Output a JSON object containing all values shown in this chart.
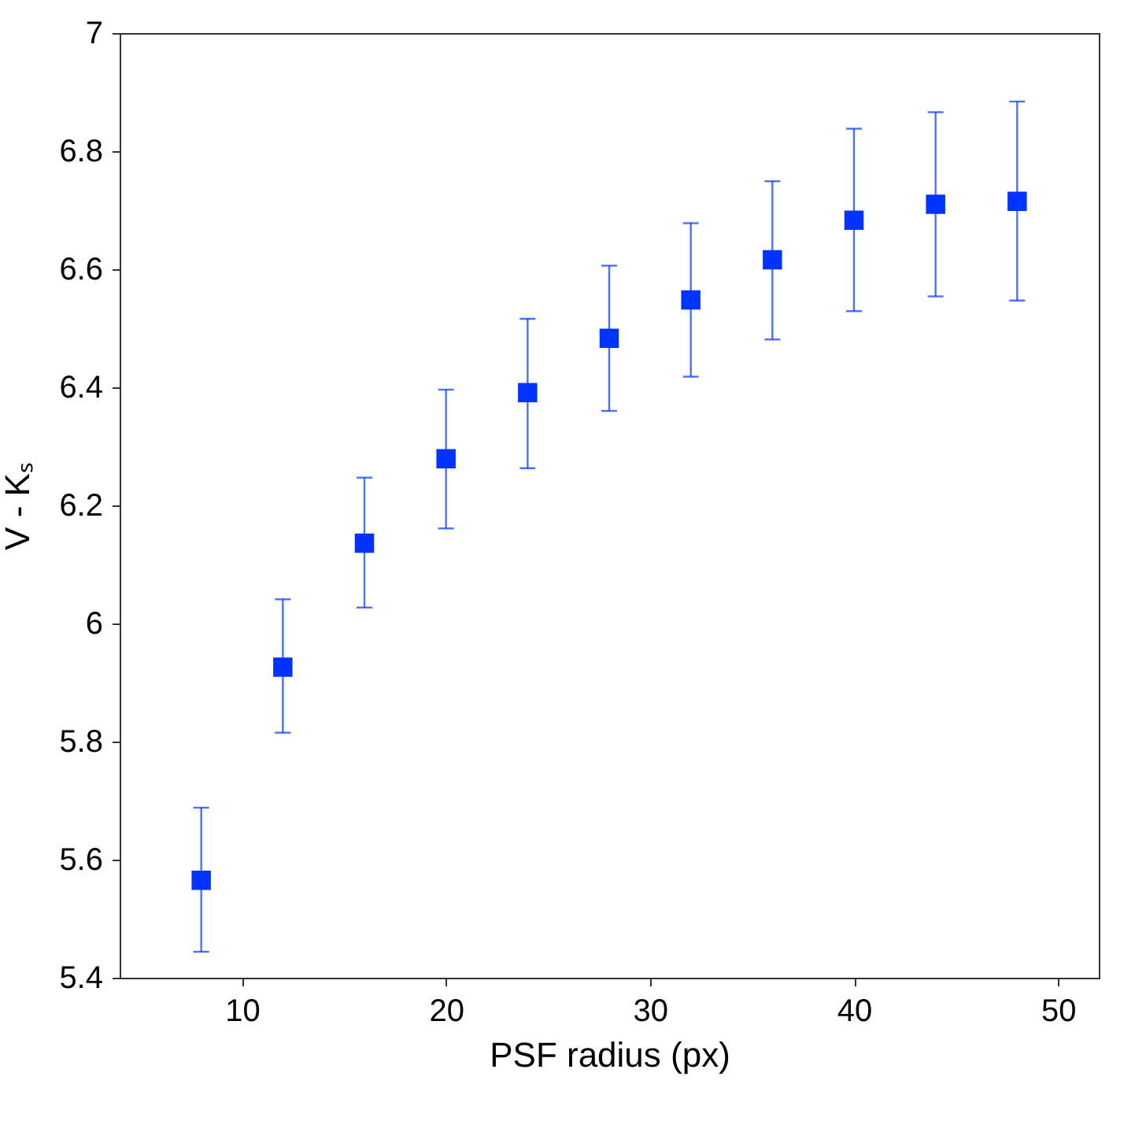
{
  "chart_data": {
    "type": "scatter",
    "xlabel": "PSF radius (px)",
    "ylabel": "V - Kₛ",
    "x": [
      8,
      12,
      16,
      20,
      24,
      28,
      32,
      36,
      40,
      44,
      48
    ],
    "series": [
      {
        "color": "#0033ff",
        "marker": "square",
        "values": [
          5.565,
          5.926,
          6.136,
          6.279,
          6.391,
          6.483,
          6.548,
          6.616,
          6.683,
          6.71,
          6.715
        ],
        "errors": [
          [
            5.444,
            5.688
          ],
          [
            5.815,
            6.041
          ],
          [
            6.027,
            6.247
          ],
          [
            6.161,
            6.396
          ],
          [
            6.263,
            6.516
          ],
          [
            6.36,
            6.606
          ],
          [
            6.418,
            6.678
          ],
          [
            6.481,
            6.749
          ],
          [
            6.529,
            6.838
          ],
          [
            6.554,
            6.866
          ],
          [
            6.547,
            6.884
          ]
        ]
      }
    ],
    "xlim": [
      4,
      52
    ],
    "xticks": [
      10,
      20,
      30,
      40,
      50
    ],
    "ylim": [
      5.4,
      7
    ],
    "yticks": [
      5.4,
      5.6,
      5.8,
      6,
      6.2,
      6.4,
      6.6,
      6.8,
      7
    ],
    "grid": false
  }
}
